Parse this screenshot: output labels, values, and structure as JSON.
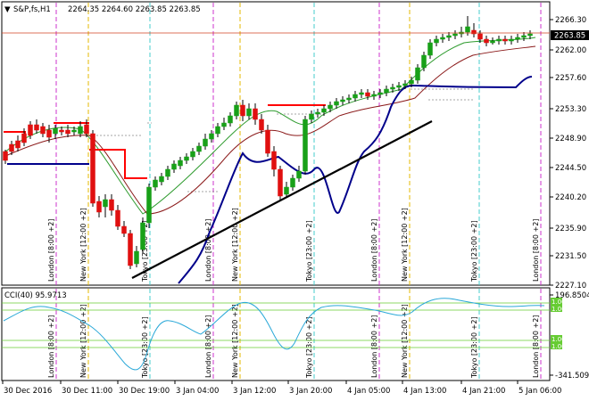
{
  "header": {
    "symbol_label": "S&P,fs,H1",
    "ohlc": "2264.35 2264.60 2263.85 2263.85"
  },
  "price_axis": {
    "ticks": [
      "2266.30",
      "2262.00",
      "2257.60",
      "2253.30",
      "2248.90",
      "2244.50",
      "2240.20",
      "2235.90",
      "2231.50",
      "2227.10"
    ],
    "current_price": "2263.85"
  },
  "indicator": {
    "label": "CCI(40) 95.9713",
    "ticks": [
      "196.8504",
      "-341.5094"
    ],
    "level_badges": [
      "1.00",
      "1.00",
      "1.00",
      "1.00"
    ]
  },
  "time_axis": {
    "labels": [
      "30 Dec 2016",
      "30 Dec 11:00",
      "30 Dec 19:00",
      "3 Jan 04:00",
      "3 Jan 12:00",
      "3 Jan 20:00",
      "4 Jan 05:00",
      "4 Jan 13:00",
      "4 Jan 21:00",
      "5 Jan 06:00"
    ]
  },
  "sessions": [
    {
      "label": "London [8:00 +2]"
    },
    {
      "label": "New York [12:00 +2]"
    },
    {
      "label": "Tokyo [23:00 +2]"
    },
    {
      "label": "London [8:00 +2]"
    },
    {
      "label": "New York [12:00 +2]"
    },
    {
      "label": "Tokyo [23:00 +2]"
    },
    {
      "label": "London [8:00 +2]"
    },
    {
      "label": "New York [12:00 +2]"
    },
    {
      "label": "Tokyo [23:00 +2]"
    },
    {
      "label": "London [8:00 +2]"
    }
  ],
  "colors": {
    "bull": "#18a018",
    "bear": "#e01010",
    "doji": "#000000",
    "ma_fast": "#2e9b2e",
    "ma_slow": "#8b1a1a",
    "channel_upper": "#ff0000",
    "channel_lower": "#00008b",
    "trendline": "#000000",
    "cci_line": "#2aa8d8",
    "cci_level": "#66cc33",
    "session_london": "#cc33cc",
    "session_newyork": "#e6b800",
    "session_tokyo": "#44cccc",
    "current_price_line": "#d04020"
  }
}
